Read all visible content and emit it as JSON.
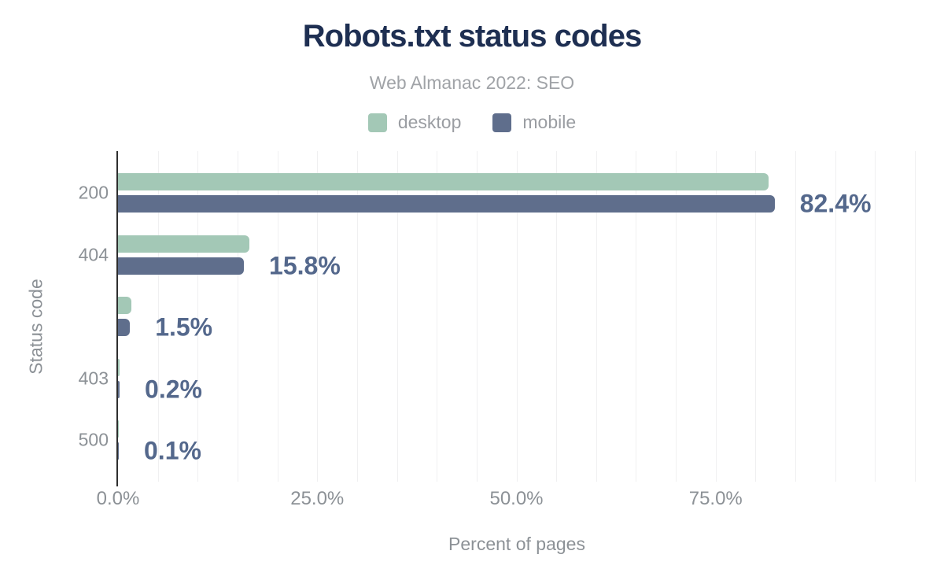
{
  "chart_data": {
    "type": "bar",
    "orientation": "horizontal",
    "title": "Robots.txt status codes",
    "subtitle": "Web Almanac 2022: SEO",
    "xlabel": "Percent of pages",
    "ylabel": "Status code",
    "xlim": [
      0,
      100
    ],
    "grid": "vertical minor gridlines every 5%",
    "legend_position": "top-center",
    "categories": [
      "200",
      "404",
      "",
      "403",
      "500"
    ],
    "series": [
      {
        "name": "desktop",
        "color": "#a3c8b6",
        "values": [
          81.6,
          16.5,
          1.7,
          0.2,
          0.1
        ]
      },
      {
        "name": "mobile",
        "color": "#5f6e8c",
        "values": [
          82.4,
          15.8,
          1.5,
          0.2,
          0.1
        ]
      }
    ],
    "value_labels": {
      "labeled_series": "mobile",
      "texts": [
        "82.4%",
        "15.8%",
        "1.5%",
        "0.2%",
        "0.1%"
      ]
    },
    "x_ticks": [
      {
        "value": 0,
        "label": "0.0%"
      },
      {
        "value": 25,
        "label": "25.0%"
      },
      {
        "value": 50,
        "label": "50.0%"
      },
      {
        "value": 75,
        "label": "75.0%"
      }
    ]
  },
  "colors": {
    "background": "#ffffff",
    "title": "#1e2f52",
    "subtitle": "#a0a3a7",
    "axis_text": "#8c9196",
    "value_label": "#54688c",
    "desktop": "#a3c8b6",
    "mobile": "#5f6e8c",
    "axis_line": "#2e2e2e",
    "gridline": "#f0f0f1"
  }
}
